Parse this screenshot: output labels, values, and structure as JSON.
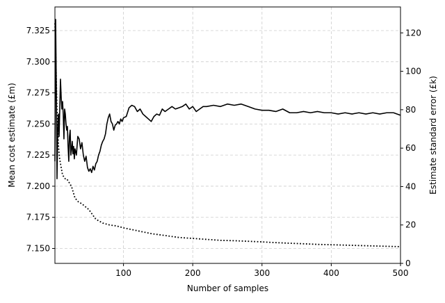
{
  "chart_data": {
    "type": "line",
    "title": "",
    "xlabel": "Number of samples",
    "ylabel": "Mean cost estimate (£m)",
    "ylabel_right": "Estimate standard error (£k)",
    "xlim": [
      1,
      500
    ],
    "ylim": [
      7.138,
      7.344
    ],
    "ylim_right": [
      0,
      133.5
    ],
    "grid": true,
    "x_ticks": [
      100,
      200,
      300,
      400,
      500
    ],
    "x_tick_labels": [
      "100",
      "200",
      "300",
      "400",
      "500"
    ],
    "y_ticks": [
      7.15,
      7.175,
      7.2,
      7.225,
      7.25,
      7.275,
      7.3,
      7.325
    ],
    "y_tick_labels": [
      "7.150",
      "7.175",
      "7.200",
      "7.225",
      "7.250",
      "7.275",
      "7.300",
      "7.325"
    ],
    "y_right_ticks": [
      0,
      20,
      40,
      60,
      80,
      100,
      120
    ],
    "y_right_tick_labels": [
      "0",
      "20",
      "40",
      "60",
      "80",
      "100",
      "120"
    ],
    "colors": {
      "series": "#000000",
      "grid": "#cccccc"
    },
    "series": [
      {
        "axis": "left",
        "style": "solid",
        "x": [
          1,
          2,
          3,
          4,
          5,
          6,
          7,
          8,
          9,
          10,
          11,
          12,
          13,
          14,
          15,
          16,
          17,
          18,
          19,
          20,
          21,
          22,
          23,
          24,
          25,
          26,
          27,
          28,
          29,
          30,
          32,
          34,
          36,
          38,
          40,
          42,
          44,
          46,
          48,
          50,
          52,
          54,
          56,
          58,
          60,
          62,
          64,
          66,
          68,
          70,
          72,
          74,
          76,
          78,
          80,
          82,
          84,
          86,
          88,
          90,
          92,
          94,
          96,
          98,
          100,
          104,
          108,
          112,
          116,
          120,
          124,
          128,
          132,
          136,
          140,
          144,
          148,
          152,
          156,
          160,
          165,
          170,
          175,
          180,
          185,
          190,
          195,
          200,
          205,
          210,
          215,
          220,
          230,
          240,
          250,
          260,
          270,
          280,
          290,
          300,
          310,
          320,
          330,
          340,
          350,
          360,
          370,
          380,
          390,
          400,
          410,
          420,
          430,
          440,
          450,
          460,
          470,
          480,
          490,
          500
        ],
        "y": [
          7.22,
          7.334,
          7.28,
          7.206,
          7.245,
          7.258,
          7.24,
          7.262,
          7.286,
          7.272,
          7.262,
          7.268,
          7.258,
          7.238,
          7.262,
          7.258,
          7.25,
          7.245,
          7.248,
          7.232,
          7.22,
          7.24,
          7.245,
          7.225,
          7.23,
          7.236,
          7.226,
          7.232,
          7.222,
          7.23,
          7.225,
          7.24,
          7.238,
          7.23,
          7.235,
          7.225,
          7.22,
          7.224,
          7.215,
          7.212,
          7.214,
          7.211,
          7.216,
          7.213,
          7.218,
          7.22,
          7.225,
          7.228,
          7.233,
          7.236,
          7.238,
          7.242,
          7.25,
          7.255,
          7.258,
          7.252,
          7.25,
          7.245,
          7.249,
          7.25,
          7.252,
          7.25,
          7.254,
          7.252,
          7.255,
          7.256,
          7.263,
          7.265,
          7.264,
          7.26,
          7.262,
          7.258,
          7.256,
          7.254,
          7.252,
          7.256,
          7.258,
          7.257,
          7.262,
          7.26,
          7.262,
          7.264,
          7.262,
          7.263,
          7.264,
          7.266,
          7.262,
          7.264,
          7.26,
          7.262,
          7.264,
          7.264,
          7.265,
          7.264,
          7.266,
          7.265,
          7.266,
          7.264,
          7.262,
          7.261,
          7.261,
          7.26,
          7.262,
          7.259,
          7.259,
          7.26,
          7.259,
          7.26,
          7.259,
          7.259,
          7.258,
          7.259,
          7.258,
          7.259,
          7.258,
          7.259,
          7.258,
          7.259,
          7.259,
          7.257
        ]
      },
      {
        "axis": "right",
        "style": "dotted",
        "x": [
          1,
          2,
          3,
          4,
          5,
          6,
          7,
          8,
          9,
          10,
          12,
          14,
          16,
          18,
          20,
          25,
          30,
          35,
          40,
          50,
          60,
          70,
          80,
          90,
          100,
          120,
          140,
          160,
          180,
          200,
          220,
          240,
          260,
          280,
          300,
          320,
          340,
          360,
          380,
          400,
          420,
          440,
          460,
          480,
          500
        ],
        "y": [
          125,
          112,
          95,
          80,
          70,
          62,
          57,
          54,
          52,
          50,
          46,
          45,
          44,
          44,
          43,
          40,
          34,
          32,
          31,
          28,
          23,
          21,
          20,
          19.5,
          18.5,
          17,
          15.5,
          14.5,
          13.5,
          13,
          12.5,
          12,
          11.8,
          11.5,
          11.2,
          10.8,
          10.5,
          10.2,
          9.9,
          9.7,
          9.5,
          9.3,
          9.1,
          8.9,
          8.7
        ]
      }
    ]
  }
}
